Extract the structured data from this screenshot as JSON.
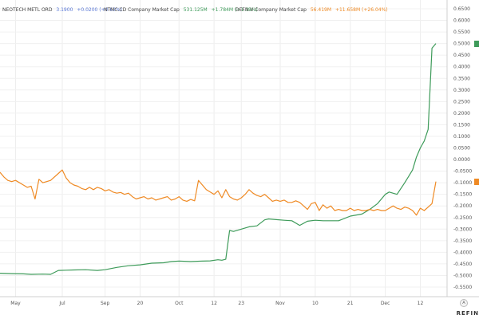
{
  "legend": [
    {
      "name": "NEOTECH METL ORD",
      "value": "3.1900",
      "change": "+0.0200 (+0.63%)",
      "color": "#5a78d6"
    },
    {
      "name": "NTMC.CD Company Market Cap",
      "value": "531.125M",
      "change": "+1.784M (+1.38%)",
      "color": "#3e9b5a"
    },
    {
      "name": "DEFN.V Company Market Cap",
      "value": "56.419M",
      "change": "+11.658M (+26.04%)",
      "color": "#ef8a24"
    }
  ],
  "brand": "REFIN",
  "axis_button": "A",
  "chart_data": {
    "type": "line",
    "x_tick_labels": [
      "May",
      "Jul",
      "Sep",
      "20",
      "Oct",
      "12",
      "23",
      "Nov",
      "10",
      "21",
      "Dec",
      "12"
    ],
    "y_ticks": [
      "0.6500",
      "0.6000",
      "0.5500",
      "0.5000",
      "0.4500",
      "0.4000",
      "0.3500",
      "0.3000",
      "0.2500",
      "0.2000",
      "0.1500",
      "0.1000",
      "0.0500",
      "0.0000",
      "-0.0500",
      "-0.1000",
      "-0.1500",
      "-0.2000",
      "-0.2500",
      "-0.3000",
      "-0.3500",
      "-0.4000",
      "-0.4500",
      "-0.5000",
      "-0.5500"
    ],
    "ylim": [
      -0.55,
      0.65
    ],
    "xlim": [
      0,
      112
    ],
    "x_tick_positions": [
      4,
      16,
      27,
      36,
      46,
      55,
      62,
      72,
      81,
      90,
      99,
      108
    ],
    "series": [
      {
        "color": "#3e9b5a",
        "x": [
          0,
          3,
          6,
          8,
          11,
          13,
          15,
          17,
          19,
          22,
          25,
          27,
          30,
          33,
          36,
          39,
          42,
          44,
          46,
          49,
          52,
          54,
          56,
          57,
          58,
          59,
          60,
          62,
          64,
          66,
          68,
          69,
          71,
          73,
          75,
          77,
          79,
          81,
          83,
          85,
          87,
          90,
          93,
          95,
          97,
          99,
          100,
          102,
          104,
          106,
          107,
          108,
          109,
          110,
          111,
          112
        ],
        "y": [
          -0.49,
          -0.492,
          -0.493,
          -0.495,
          -0.494,
          -0.495,
          -0.478,
          -0.477,
          -0.476,
          -0.475,
          -0.478,
          -0.475,
          -0.465,
          -0.458,
          -0.454,
          -0.447,
          -0.445,
          -0.44,
          -0.438,
          -0.44,
          -0.438,
          -0.437,
          -0.432,
          -0.434,
          -0.43,
          -0.306,
          -0.31,
          -0.3,
          -0.29,
          -0.286,
          -0.26,
          -0.256,
          -0.259,
          -0.262,
          -0.264,
          -0.284,
          -0.266,
          -0.262,
          -0.264,
          -0.264,
          -0.264,
          -0.244,
          -0.235,
          -0.215,
          -0.19,
          -0.15,
          -0.14,
          -0.15,
          -0.1,
          -0.045,
          0.01,
          0.05,
          0.08,
          0.13,
          0.48,
          0.5
        ]
      },
      {
        "color": "#ef8a24",
        "x": [
          0,
          1,
          2,
          3,
          4,
          6,
          7,
          8,
          9,
          10,
          11,
          12,
          13,
          15,
          16,
          17,
          18,
          19,
          20,
          21,
          22,
          23,
          24,
          25,
          26,
          27,
          28,
          29,
          30,
          31,
          32,
          33,
          34,
          35,
          36,
          37,
          38,
          39,
          40,
          41,
          42,
          43,
          44,
          45,
          46,
          47,
          48,
          49,
          50,
          51,
          52,
          53,
          54,
          55,
          56,
          57,
          58,
          59,
          60,
          61,
          62,
          63,
          64,
          65,
          66,
          67,
          68,
          69,
          70,
          71,
          72,
          73,
          74,
          75,
          76,
          77,
          78,
          79,
          80,
          81,
          82,
          83,
          84,
          85,
          86,
          87,
          88,
          89,
          90,
          91,
          92,
          93,
          94,
          95,
          96,
          97,
          98,
          99,
          100,
          101,
          102,
          103,
          104,
          105,
          106,
          107,
          108,
          109,
          110,
          111,
          112
        ],
        "y": [
          -0.055,
          -0.075,
          -0.09,
          -0.095,
          -0.09,
          -0.11,
          -0.12,
          -0.115,
          -0.17,
          -0.085,
          -0.1,
          -0.095,
          -0.09,
          -0.06,
          -0.045,
          -0.08,
          -0.1,
          -0.11,
          -0.115,
          -0.125,
          -0.13,
          -0.12,
          -0.13,
          -0.12,
          -0.125,
          -0.135,
          -0.13,
          -0.14,
          -0.145,
          -0.142,
          -0.15,
          -0.145,
          -0.16,
          -0.17,
          -0.165,
          -0.16,
          -0.17,
          -0.165,
          -0.175,
          -0.17,
          -0.165,
          -0.16,
          -0.175,
          -0.17,
          -0.16,
          -0.175,
          -0.18,
          -0.172,
          -0.178,
          -0.09,
          -0.11,
          -0.13,
          -0.14,
          -0.15,
          -0.135,
          -0.165,
          -0.13,
          -0.16,
          -0.17,
          -0.175,
          -0.165,
          -0.15,
          -0.13,
          -0.145,
          -0.155,
          -0.16,
          -0.15,
          -0.165,
          -0.18,
          -0.175,
          -0.18,
          -0.175,
          -0.185,
          -0.185,
          -0.178,
          -0.185,
          -0.2,
          -0.215,
          -0.19,
          -0.185,
          -0.22,
          -0.195,
          -0.21,
          -0.2,
          -0.22,
          -0.215,
          -0.22,
          -0.22,
          -0.21,
          -0.22,
          -0.215,
          -0.22,
          -0.22,
          -0.215,
          -0.22,
          -0.215,
          -0.22,
          -0.22,
          -0.21,
          -0.2,
          -0.21,
          -0.215,
          -0.205,
          -0.21,
          -0.22,
          -0.24,
          -0.21,
          -0.22,
          -0.205,
          -0.19,
          -0.095
        ]
      }
    ],
    "end_markers": [
      {
        "series": 0,
        "value": 0.5
      },
      {
        "series": 1,
        "value": -0.095
      }
    ]
  }
}
